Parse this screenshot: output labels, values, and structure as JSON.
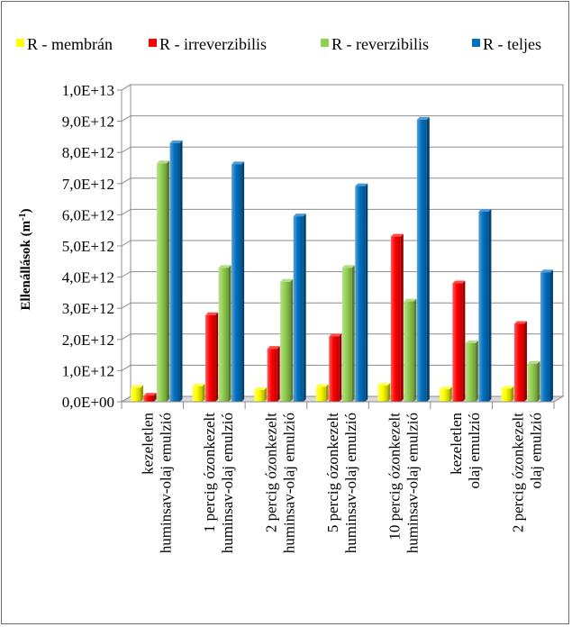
{
  "chart_data": {
    "type": "bar",
    "style": "3d-clustered-column",
    "ylabel": "Ellenállások (m",
    "ylabel_sup": "-1",
    "ylabel_end": ")",
    "ylim": [
      0,
      10000000000000.0
    ],
    "yticks": [
      0,
      1000000000000.0,
      2000000000000.0,
      3000000000000.0,
      4000000000000.0,
      5000000000000.0,
      6000000000000.0,
      7000000000000.0,
      8000000000000.0,
      9000000000000.0,
      10000000000000.0
    ],
    "ytick_labels": [
      "0,0E+00",
      "1,0E+12",
      "2,0E+12",
      "3,0E+12",
      "4,0E+12",
      "5,0E+12",
      "6,0E+12",
      "7,0E+12",
      "8,0E+12",
      "9,0E+12",
      "1,0E+13"
    ],
    "grid": true,
    "legend_position": "top",
    "categories": [
      [
        "kezeletlen",
        "huminsav-olaj emulzió"
      ],
      [
        "1 percig ózonkezelt",
        "huminsav-olaj emulzió"
      ],
      [
        "2 percig ózonkezelt",
        "huminsav-olaj emulzió"
      ],
      [
        "5 percig ózonkezelt",
        "huminsav-olaj emulzió"
      ],
      [
        "10 percig ózonkezelt",
        "huminsav-olaj emulzió"
      ],
      [
        "kezeletlen",
        "olaj emulzió"
      ],
      [
        "2 percig ózonkezelt",
        "olaj emulzió"
      ]
    ],
    "series": [
      {
        "name": "R - membrán",
        "color": "#ffff00",
        "values": [
          450000000000.0,
          500000000000.0,
          380000000000.0,
          480000000000.0,
          520000000000.0,
          400000000000.0,
          420000000000.0
        ]
      },
      {
        "name": "R - irreverzibilis",
        "color": "#ff0000",
        "values": [
          200000000000.0,
          2780000000000.0,
          1700000000000.0,
          2100000000000.0,
          5300000000000.0,
          3800000000000.0,
          2500000000000.0
        ]
      },
      {
        "name": "R - reverzibilis",
        "color": "#92d050",
        "values": [
          7650000000000.0,
          4300000000000.0,
          3850000000000.0,
          4300000000000.0,
          3220000000000.0,
          1880000000000.0,
          1220000000000.0
        ]
      },
      {
        "name": "R - teljes",
        "color": "#0070c0",
        "values": [
          8300000000000.0,
          7620000000000.0,
          5950000000000.0,
          6920000000000.0,
          9050000000000.0,
          6100000000000.0,
          4150000000000.0
        ]
      }
    ]
  }
}
